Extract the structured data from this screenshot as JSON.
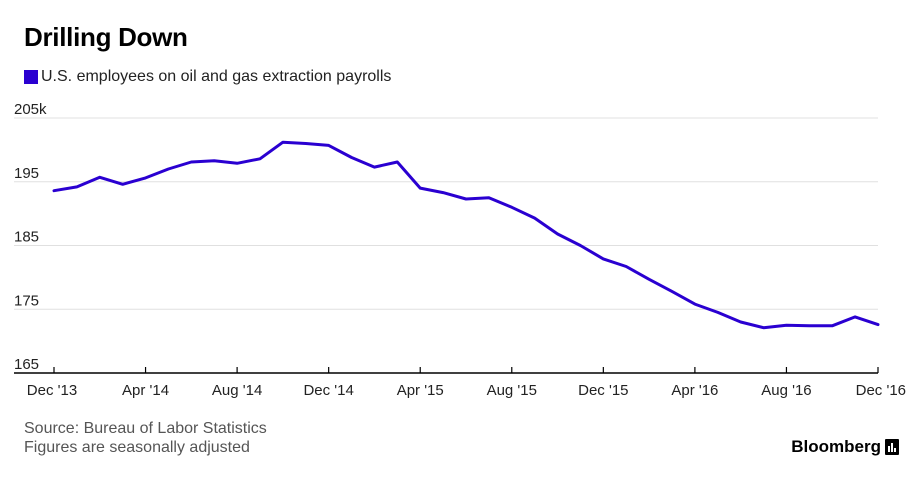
{
  "title": "Drilling Down",
  "legend_label": "U.S. employees on oil and gas extraction payrolls",
  "source_line": "Source: Bureau of Labor Statistics",
  "note_line": "Figures are seasonally adjusted",
  "brand": "Bloomberg",
  "colors": {
    "series": "#2a00d1",
    "grid": "#e0e0e0",
    "axis": "#000000"
  },
  "chart_data": {
    "type": "line",
    "title": "Drilling Down",
    "xlabel": "",
    "ylabel": "",
    "ylim": [
      165,
      205
    ],
    "y_ticks": [
      205,
      195,
      185,
      175,
      165
    ],
    "y_tick_labels": [
      "205k",
      "195",
      "185",
      "175",
      "165"
    ],
    "x_ticks": [
      0,
      4,
      8,
      12,
      16,
      20,
      24,
      28,
      32,
      36
    ],
    "x_tick_labels": [
      "Dec '13",
      "Apr '14",
      "Aug '14",
      "Dec '14",
      "Apr '15",
      "Aug '15",
      "Dec '15",
      "Apr '16",
      "Aug '16",
      "Dec '16"
    ],
    "grid": true,
    "series": [
      {
        "name": "U.S. employees on oil and gas extraction payrolls",
        "x": [
          0,
          1,
          2,
          3,
          4,
          5,
          6,
          7,
          8,
          9,
          10,
          11,
          12,
          13,
          14,
          15,
          16,
          17,
          18,
          19,
          20,
          21,
          22,
          23,
          24,
          25,
          26,
          27,
          28,
          29,
          30,
          31,
          32,
          33,
          34,
          35,
          36
        ],
        "values": [
          193.6,
          194.2,
          195.7,
          194.6,
          195.6,
          197.0,
          198.1,
          198.3,
          197.9,
          198.6,
          201.2,
          201.0,
          200.7,
          198.8,
          197.3,
          198.1,
          194.0,
          193.3,
          192.3,
          192.5,
          191.0,
          189.3,
          186.8,
          185.0,
          182.9,
          181.7,
          179.7,
          177.8,
          175.8,
          174.5,
          173.0,
          172.1,
          172.5,
          172.4,
          172.4,
          173.8,
          172.6
        ]
      }
    ]
  }
}
